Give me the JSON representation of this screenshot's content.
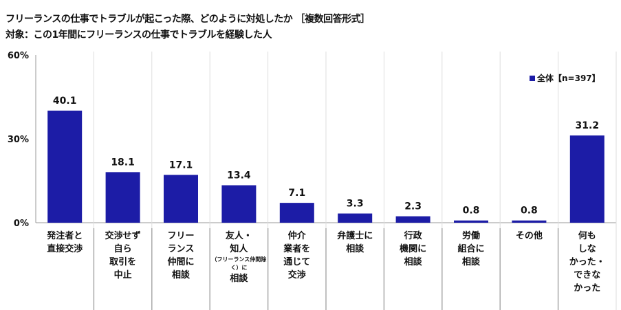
{
  "chart_data": {
    "type": "bar",
    "title": "フリーランスの仕事でトラブルが起こった際、どのように対処したか ［複数回答形式］",
    "subtitle": "対象：この1年間にフリーランスの仕事でトラブルを経験した人",
    "ylim": [
      0,
      60
    ],
    "yticks": [
      "0%",
      "30%",
      "60%"
    ],
    "ytick_values": [
      0,
      30,
      60
    ],
    "grid": false,
    "legend_position": "top-right",
    "series": [
      {
        "name": "全体【n=397】",
        "color": "#1c1ca6",
        "values": [
          40.1,
          18.1,
          17.1,
          13.4,
          7.1,
          3.3,
          2.3,
          0.8,
          0.8,
          31.2
        ]
      }
    ],
    "data_labels": [
      "40.1",
      "18.1",
      "17.1",
      "13.4",
      "7.1",
      "3.3",
      "2.3",
      "0.8",
      "0.8",
      "31.2"
    ],
    "categories": [
      {
        "lines": [
          "発注者と",
          "直接交渉"
        ]
      },
      {
        "lines": [
          "交渉せず",
          "自ら",
          "取引を",
          "中止"
        ]
      },
      {
        "lines": [
          "フリー",
          "ランス",
          "仲間に",
          "相談"
        ]
      },
      {
        "lines": [
          "友人・",
          "知人",
          "（フリーランス仲間除く）に",
          "相談"
        ],
        "small_line": 2
      },
      {
        "lines": [
          "仲介",
          "業者を",
          "通じて",
          "交渉"
        ]
      },
      {
        "lines": [
          "弁護士に",
          "相談"
        ]
      },
      {
        "lines": [
          "行政",
          "機関に",
          "相談"
        ]
      },
      {
        "lines": [
          "労働",
          "組合に",
          "相談"
        ]
      },
      {
        "lines": [
          "その他"
        ]
      },
      {
        "lines": [
          "何も",
          "しな",
          "かった・",
          "できな",
          "かった"
        ]
      }
    ]
  }
}
